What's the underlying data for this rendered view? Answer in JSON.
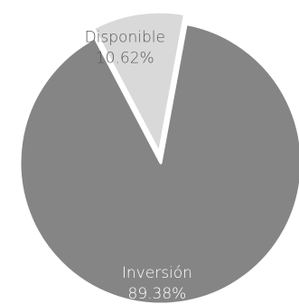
{
  "chart_data": {
    "type": "pie",
    "title": "",
    "slices": [
      {
        "label": "Inversión",
        "value": 89.38,
        "value_label": "89.38%",
        "color": "#858585",
        "label_color": "#ffffff",
        "exploded": false
      },
      {
        "label": "Disponible",
        "value": 10.62,
        "value_label": "10.62%",
        "color": "#d9d9d9",
        "label_color": "#595959",
        "exploded": true
      }
    ],
    "legend": "none",
    "slice_border_color": "#ffffff"
  }
}
